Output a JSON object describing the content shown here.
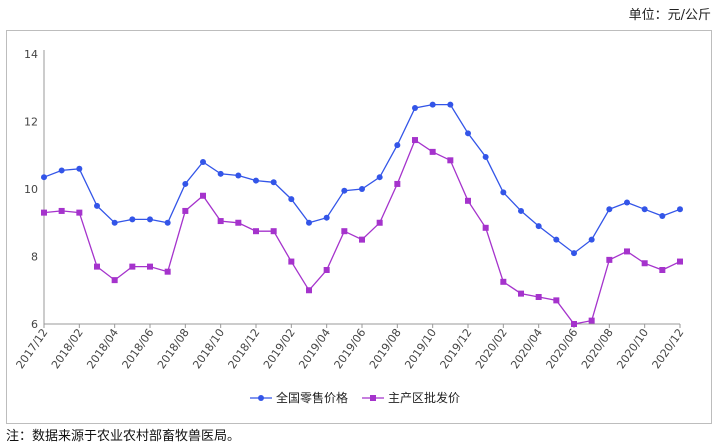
{
  "unit_label": "单位：元/公斤",
  "note": "注：数据来源于农业农村部畜牧兽医局。",
  "colors": {
    "retail": "#3355e8",
    "wholesale": "#a533cc"
  },
  "chart_data": {
    "type": "line",
    "ylim": [
      6,
      14
    ],
    "yticks": [
      6,
      8,
      10,
      12,
      14
    ],
    "xtick_labels": [
      "2017/12",
      "2018/02",
      "2018/04",
      "2018/06",
      "2018/08",
      "2018/10",
      "2018/12",
      "2019/02",
      "2019/04",
      "2019/06",
      "2019/08",
      "2019/10",
      "2019/12",
      "2020/02",
      "2020/04",
      "2020/06",
      "2020/08",
      "2020/10",
      "2020/12"
    ],
    "x": [
      "2017/12",
      "2018/01",
      "2018/02",
      "2018/03",
      "2018/04",
      "2018/05",
      "2018/06",
      "2018/07",
      "2018/08",
      "2018/09",
      "2018/10",
      "2018/11",
      "2018/12",
      "2019/01",
      "2019/02",
      "2019/03",
      "2019/04",
      "2019/05",
      "2019/06",
      "2019/07",
      "2019/08",
      "2019/09",
      "2019/10",
      "2019/11",
      "2019/12",
      "2020/01",
      "2020/02",
      "2020/03",
      "2020/04",
      "2020/05",
      "2020/06",
      "2020/07",
      "2020/08",
      "2020/09",
      "2020/10",
      "2020/11",
      "2020/12"
    ],
    "series": [
      {
        "name": "全国零售价格",
        "values": [
          10.35,
          10.55,
          10.6,
          9.5,
          9.0,
          9.1,
          9.1,
          9.0,
          10.15,
          10.8,
          10.45,
          10.4,
          10.25,
          10.2,
          9.7,
          9.0,
          9.15,
          9.95,
          10.0,
          10.35,
          11.3,
          12.4,
          12.5,
          12.5,
          11.65,
          10.95,
          9.9,
          9.35,
          8.9,
          8.5,
          8.1,
          8.5,
          9.4,
          9.6,
          9.4,
          9.2,
          9.4
        ]
      },
      {
        "name": "主产区批发价",
        "values": [
          9.3,
          9.35,
          9.3,
          7.7,
          7.3,
          7.7,
          7.7,
          7.55,
          9.35,
          9.8,
          9.05,
          9.0,
          8.75,
          8.75,
          7.85,
          7.0,
          7.6,
          8.75,
          8.5,
          9.0,
          10.15,
          11.45,
          11.1,
          10.85,
          9.65,
          8.85,
          7.25,
          6.9,
          6.8,
          6.7,
          6.0,
          6.1,
          7.9,
          8.15,
          7.8,
          7.6,
          7.85
        ]
      }
    ]
  }
}
